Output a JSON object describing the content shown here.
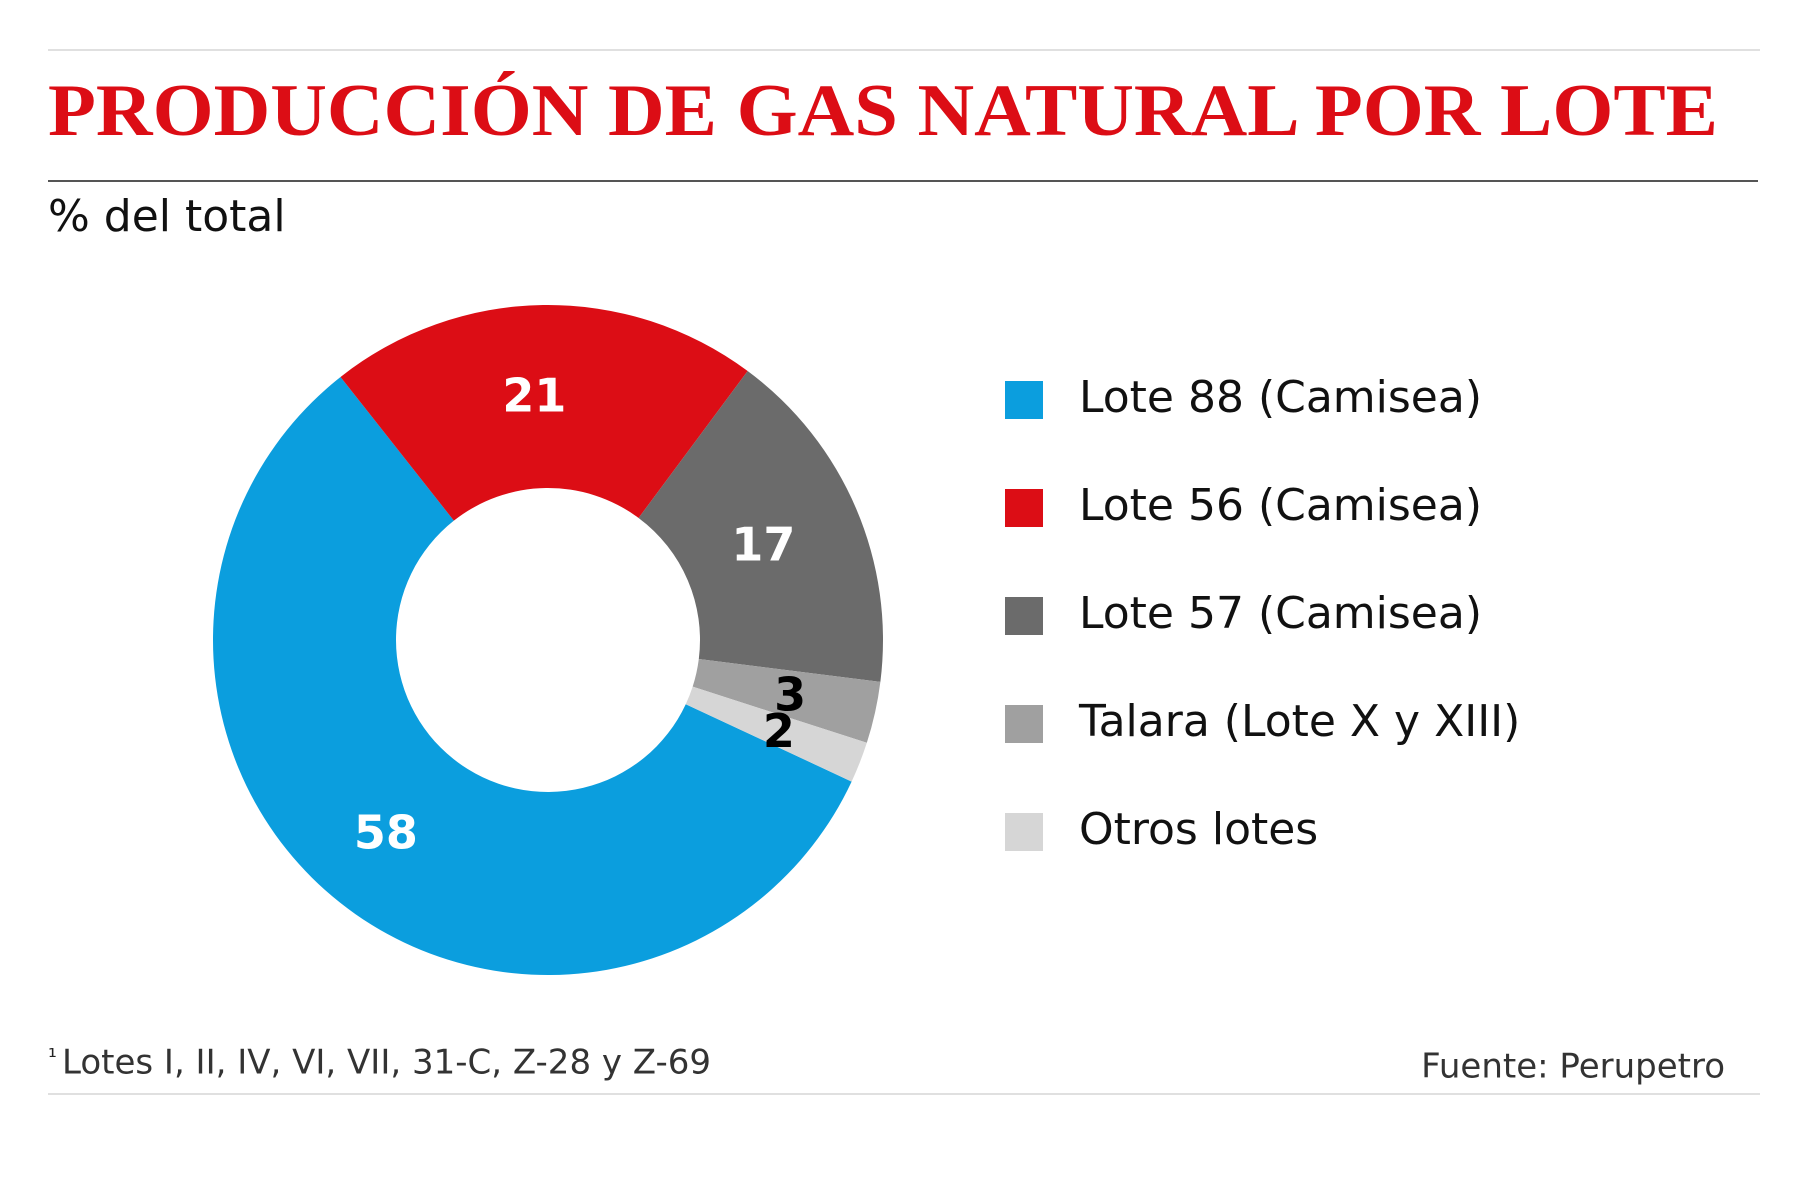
{
  "chart_data": {
    "type": "pie",
    "title": "PRODUCCIÓN DE GAS NATURAL POR LOTE",
    "subtitle": "% del total",
    "categories": [
      "Lote 88 (Camisea)",
      "Lote 56 (Camisea)",
      "Lote 57 (Camisea)",
      "Talara (Lote X y XIII)",
      "Otros lotes"
    ],
    "values": [
      58,
      21,
      17,
      3,
      2
    ],
    "colors": [
      "#0b9ede",
      "#dc0d15",
      "#6b6b6b",
      "#a0a0a0",
      "#d6d6d6"
    ],
    "label_colors": [
      "#ffffff",
      "#ffffff",
      "#ffffff",
      "#000000",
      "#000000"
    ],
    "donut": true,
    "legend": "right",
    "footnote_marker": "¹",
    "footnote": "Lotes I, II, IV, VI, VII, 31-C, Z-28 y Z-69",
    "source": "Fuente: Perupetro"
  }
}
